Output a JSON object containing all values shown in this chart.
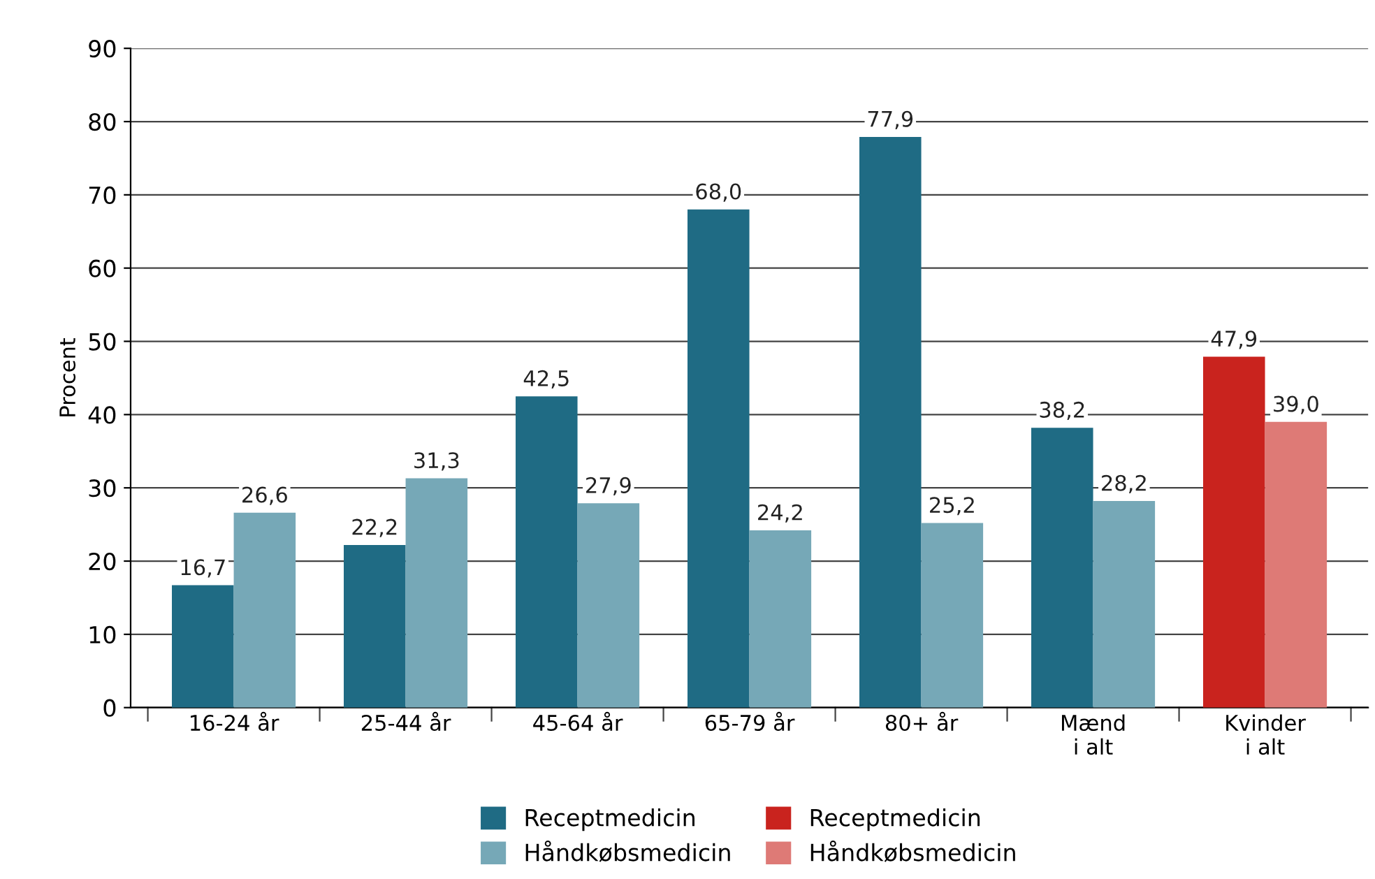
{
  "chart_data": {
    "type": "bar",
    "ylabel": "Procent",
    "categories": [
      "16-24 år",
      "25-44 år",
      "45-64 år",
      "65-79 år",
      "80+ år",
      "Mænd\ni alt",
      "Kvinder\ni alt"
    ],
    "series": [
      {
        "name": "Receptmedicin",
        "color": "#1f6b84",
        "values": [
          16.7,
          22.2,
          42.5,
          68.0,
          77.9,
          38.2,
          null
        ],
        "value_labels": [
          "16,7",
          "22,2",
          "42,5",
          "68,0",
          "77,9",
          "38,2",
          null
        ]
      },
      {
        "name": "Håndkøbsmedicin",
        "color": "#76a8b7",
        "values": [
          26.6,
          31.3,
          27.9,
          24.2,
          25.2,
          28.2,
          null
        ],
        "value_labels": [
          "26,6",
          "31,3",
          "27,9",
          "24,2",
          "25,2",
          "28,2",
          null
        ]
      },
      {
        "name": "Receptmedicin",
        "color": "#c9231e",
        "values": [
          null,
          null,
          null,
          null,
          null,
          null,
          47.9
        ],
        "value_labels": [
          null,
          null,
          null,
          null,
          null,
          null,
          "47,9"
        ]
      },
      {
        "name": "Håndkøbsmedicin",
        "color": "#de7a76",
        "values": [
          null,
          null,
          null,
          null,
          null,
          null,
          39.0
        ],
        "value_labels": [
          null,
          null,
          null,
          null,
          null,
          null,
          "39,0"
        ]
      }
    ],
    "ylim": [
      0,
      90
    ],
    "yticks": [
      0,
      10,
      20,
      30,
      40,
      50,
      60,
      70,
      80,
      90
    ],
    "grid": "y",
    "legend": "bottom"
  }
}
